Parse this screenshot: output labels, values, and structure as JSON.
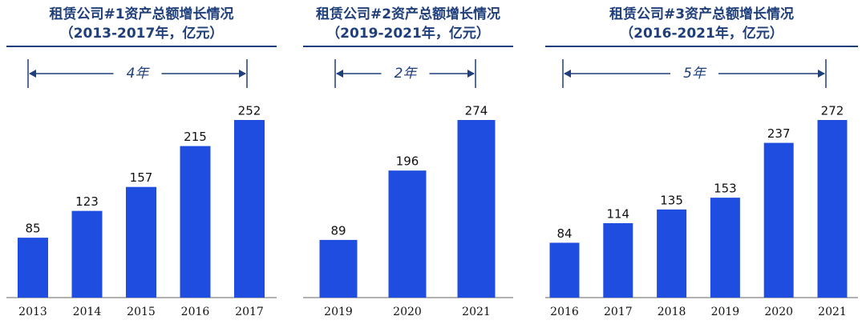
{
  "chart_data": [
    {
      "type": "bar",
      "title": "租赁公司#1资产总额增长情况",
      "subtitle": "（2013-2017年，亿元）",
      "annotation": "4年",
      "categories": [
        "2013",
        "2014",
        "2015",
        "2016",
        "2017"
      ],
      "values": [
        85,
        123,
        157,
        215,
        252
      ],
      "color": "#1f4de0"
    },
    {
      "type": "bar",
      "title": "租赁公司#2资产总额增长情况",
      "subtitle": "（2019-2021年，亿元）",
      "annotation": "2年",
      "categories": [
        "2019",
        "2020",
        "2021"
      ],
      "values": [
        89,
        196,
        274
      ],
      "color": "#1f4de0"
    },
    {
      "type": "bar",
      "title": "租赁公司#3资产总额增长情况",
      "subtitle": "（2016-2021年，亿元）",
      "annotation": "5年",
      "categories": [
        "2016",
        "2017",
        "2018",
        "2019",
        "2020",
        "2021"
      ],
      "values": [
        84,
        114,
        135,
        153,
        237,
        272
      ],
      "color": "#1f4de0"
    }
  ]
}
